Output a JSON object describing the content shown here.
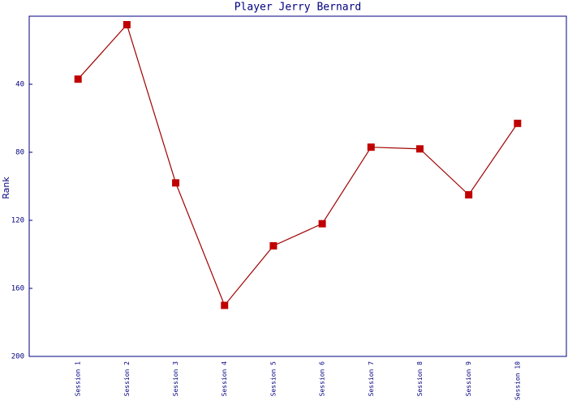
{
  "chart_data": {
    "type": "line",
    "title": "Player Jerry Bernard",
    "y_label": "Rank",
    "categories": [
      "Session 1",
      "Session 2",
      "Session 3",
      "Session 4",
      "Session 5",
      "Session 6",
      "Session 7",
      "Session 8",
      "Session 9",
      "Session 10"
    ],
    "values": [
      37,
      5,
      98,
      170,
      135,
      122,
      77,
      78,
      105,
      63
    ],
    "color": "#c00000",
    "line_color": "#a00000",
    "ylim": [
      200,
      0
    ],
    "yticks": [
      40,
      80,
      120,
      160,
      200
    ],
    "grid": false
  }
}
